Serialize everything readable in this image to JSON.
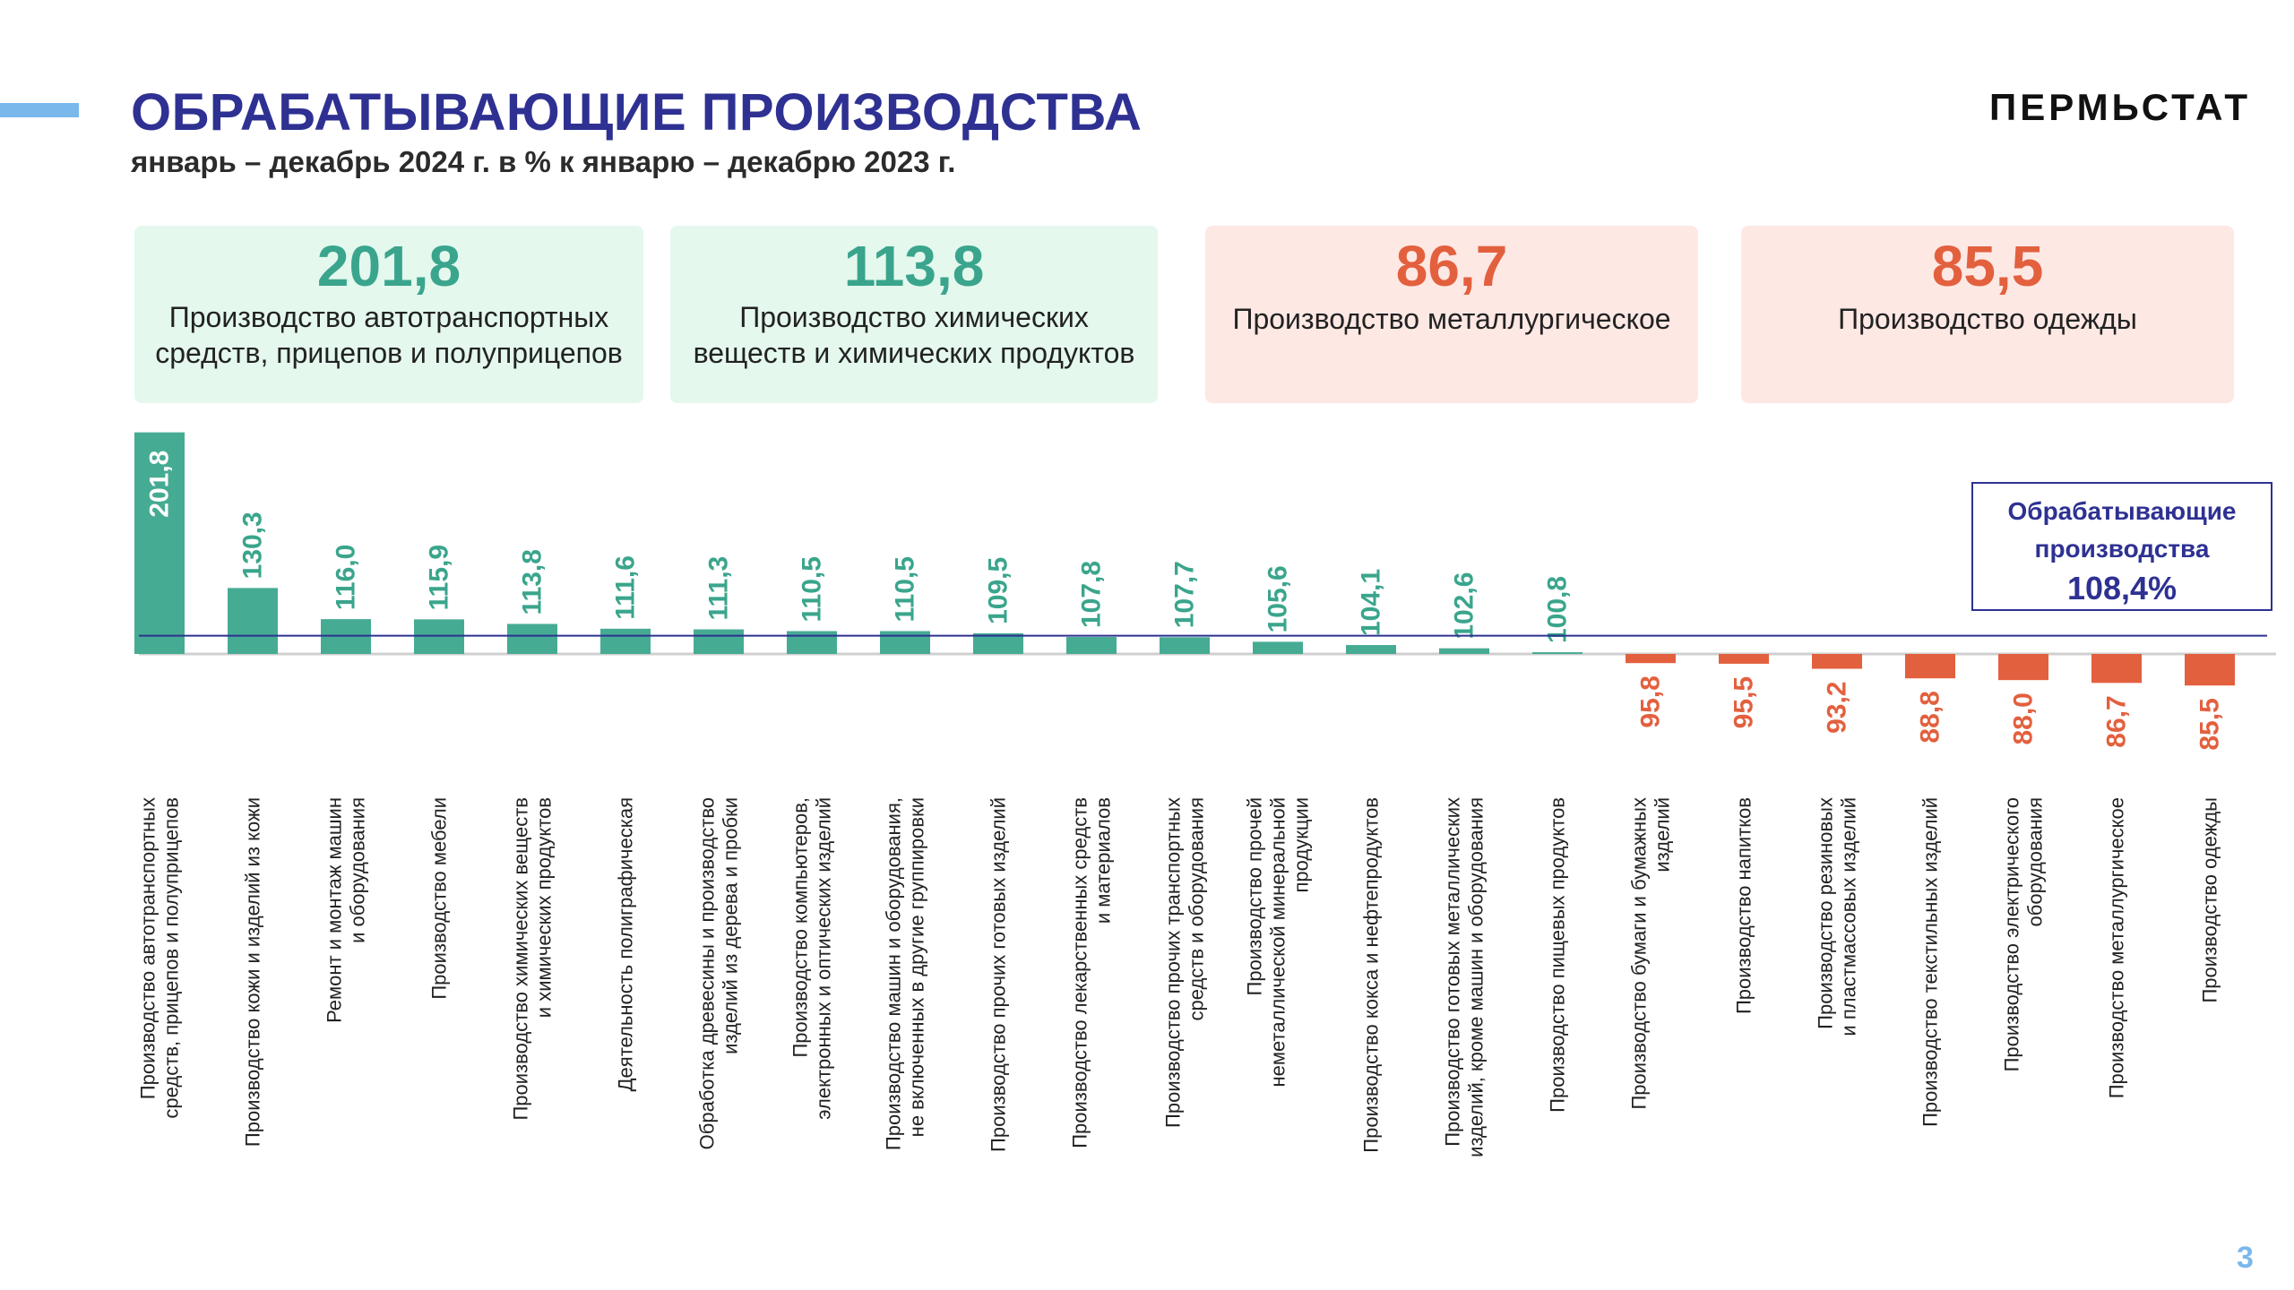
{
  "header": {
    "title": "ОБРАБАТЫВАЮЩИЕ ПРОИЗВОДСТВА",
    "subtitle": "январь – декабрь 2024 г. в % к январю – декабрю 2023 г.",
    "logo": "ПЕРМЬСТАТ"
  },
  "cards": [
    {
      "value": "201,8",
      "label": "Производство автотранспортных средств, прицепов  и полуприцепов",
      "tone": "positive"
    },
    {
      "value": "113,8",
      "label": "Производство химических веществ и химических продуктов",
      "tone": "positive"
    },
    {
      "value": "86,7",
      "label": "Производство металлургическое",
      "tone": "negative"
    },
    {
      "value": "85,5",
      "label": "Производство одежды",
      "tone": "negative"
    }
  ],
  "legend_box": {
    "label": "Обрабатывающие производства",
    "value": "108,4%"
  },
  "page_number": "3",
  "colors": {
    "title": "#2e3192",
    "positive": "#46ab93",
    "positive_text": "#3aa58c",
    "negative": "#e3603e",
    "reference_line": "#2e3192",
    "accent": "#7ab8ec"
  },
  "chart_data": {
    "type": "bar",
    "baseline": 100,
    "reference": 108.4,
    "categories": [
      [
        "Производство автотранспортных",
        "средств, прицепов и полуприцепов"
      ],
      [
        "Производство кожи и изделий из кожи"
      ],
      [
        "Ремонт и монтаж машин",
        "и оборудования"
      ],
      [
        "Производство мебели"
      ],
      [
        "Производство химических веществ",
        "и химических продуктов"
      ],
      [
        "Деятельность полиграфическая"
      ],
      [
        "Обработка древесины и производство",
        "изделий из дерева и пробки"
      ],
      [
        "Производство компьютеров,",
        "электронных и оптических изделий"
      ],
      [
        "Производство машин и оборудования,",
        "не включенных в другие группировки"
      ],
      [
        "Производство прочих готовых изделий"
      ],
      [
        "Производство лекарственных средств",
        "и материалов"
      ],
      [
        "Производство прочих транспортных",
        "средств и оборудования"
      ],
      [
        "Производство прочей",
        "неметаллической минеральной",
        "продукции"
      ],
      [
        "Производство кокса и нефтепродуктов"
      ],
      [
        "Производство готовых металлических",
        "изделий, кроме машин и оборудования"
      ],
      [
        "Производство пищевых продуктов"
      ],
      [
        "Производство бумаги и бумажных",
        "изделий"
      ],
      [
        "Производство напитков"
      ],
      [
        "Производство резиновых",
        "и пластмассовых изделий"
      ],
      [
        "Производство текстильных изделий"
      ],
      [
        "Производство электрического",
        "оборудования"
      ],
      [
        "Производство металлургическое"
      ],
      [
        "Производство одежды"
      ]
    ],
    "values": [
      201.8,
      130.3,
      116.0,
      115.9,
      113.8,
      111.6,
      111.3,
      110.5,
      110.5,
      109.5,
      107.8,
      107.7,
      105.6,
      104.1,
      102.6,
      100.8,
      95.8,
      95.5,
      93.2,
      88.8,
      88.0,
      86.7,
      85.5
    ],
    "value_labels": [
      "201,8",
      "130,3",
      "116,0",
      "115,9",
      "113,8",
      "111,6",
      "111,3",
      "110,5",
      "110,5",
      "109,5",
      "107,8",
      "107,7",
      "105,6",
      "104,1",
      "102,6",
      "100,8",
      "95,8",
      "95,5",
      "93,2",
      "88,8",
      "88,0",
      "86,7",
      "85,5"
    ]
  }
}
